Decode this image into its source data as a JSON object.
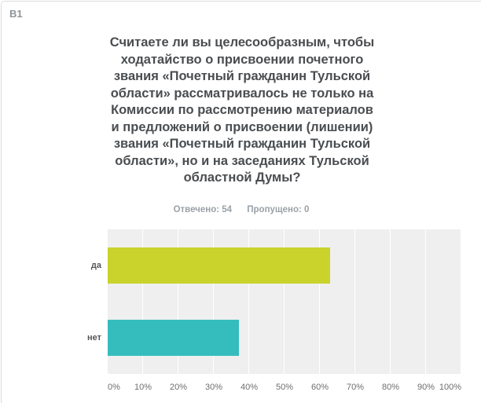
{
  "page": {
    "question_number": "B1"
  },
  "question": {
    "text": "Считаете ли вы целесообразным, чтобы\nходатайство о присвоении почетного\nзвания «Почетный гражданин Тульской\nобласти» рассматривалось не только на\nКомиссии по рассмотрению материалов\nи предложений о присвоении (лишении)\nзвания «Почетный гражданин Тульской\nобласти», но и на заседаниях Тульской\nобластной Думы?"
  },
  "stats": {
    "answered": "Отвечено: 54",
    "skipped": "Пропущено: 0"
  },
  "chart_data": {
    "type": "bar",
    "orientation": "horizontal",
    "title": "",
    "categories": [
      "да",
      "нет"
    ],
    "values": [
      62.96,
      37.04
    ],
    "answered_count": 54,
    "skipped_count": 0,
    "xlim": [
      0,
      100
    ],
    "x_tick_labels": [
      "0%",
      "10%",
      "20%",
      "30%",
      "40%",
      "50%",
      "60%",
      "70%",
      "80%",
      "90%",
      "100%"
    ],
    "grid": "vertical-white-gridlines-every-10pct",
    "legend": "none",
    "bar_colors": [
      "#c9d32c",
      "#35bdbe"
    ],
    "plot_background": "#efefef",
    "gridline_color": "#ffffff"
  },
  "colors": {
    "accent_yes": "#c9d32c",
    "accent_no": "#35bdbe",
    "card_border": "#dcdcdc",
    "question_text": "#4a4d50",
    "muted_text": "#9aa1a7",
    "axis_text": "#6e6e6e",
    "category_text": "#565656"
  }
}
